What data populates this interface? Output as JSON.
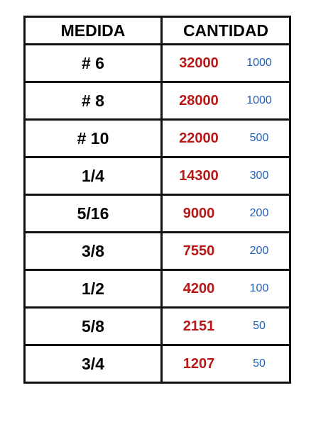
{
  "header": {
    "medida": "MEDIDA",
    "cantidad": "CANTIDAD"
  },
  "rows": [
    {
      "medida": "# 6",
      "cantidad": "32000",
      "pack": "1000"
    },
    {
      "medida": "# 8",
      "cantidad": "28000",
      "pack": "1000"
    },
    {
      "medida": "# 10",
      "cantidad": "22000",
      "pack": "500"
    },
    {
      "medida": "1/4",
      "cantidad": "14300",
      "pack": "300"
    },
    {
      "medida": "5/16",
      "cantidad": "9000",
      "pack": "200"
    },
    {
      "medida": "3/8",
      "cantidad": "7550",
      "pack": "200"
    },
    {
      "medida": "1/2",
      "cantidad": "4200",
      "pack": "100"
    },
    {
      "medida": "5/8",
      "cantidad": "2151",
      "pack": "50"
    },
    {
      "medida": "3/4",
      "cantidad": "1207",
      "pack": "50"
    }
  ],
  "colors": {
    "cantidad": "#b81717",
    "pack": "#1f5fb8",
    "border": "#111111"
  }
}
